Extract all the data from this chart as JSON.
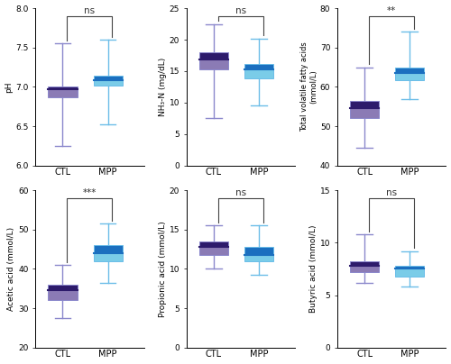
{
  "panels": [
    {
      "ylabel": "pH",
      "ylim": [
        6.0,
        8.0
      ],
      "yticks": [
        6.0,
        6.5,
        7.0,
        7.5,
        8.0
      ],
      "significance": "ns",
      "CTL": {
        "median": 6.975,
        "q1": 6.87,
        "q3": 7.0,
        "whislo": 6.25,
        "whishi": 7.55
      },
      "MPP": {
        "median": 7.08,
        "q1": 7.02,
        "q3": 7.14,
        "whislo": 6.52,
        "whishi": 7.6
      }
    },
    {
      "ylabel": "NH₃-N (mg/dL)",
      "ylim": [
        0,
        25
      ],
      "yticks": [
        0,
        5,
        10,
        15,
        20,
        25
      ],
      "significance": "ns",
      "CTL": {
        "median": 16.8,
        "q1": 15.3,
        "q3": 18.0,
        "whislo": 7.5,
        "whishi": 22.5
      },
      "MPP": {
        "median": 15.3,
        "q1": 13.8,
        "q3": 16.2,
        "whislo": 9.5,
        "whishi": 20.2
      }
    },
    {
      "ylabel": "Total volatile fatty acids\n(mmol/L)",
      "ylim": [
        40,
        80
      ],
      "yticks": [
        40,
        50,
        60,
        70,
        80
      ],
      "significance": "**",
      "CTL": {
        "median": 54.5,
        "q1": 52.0,
        "q3": 56.5,
        "whislo": 44.5,
        "whishi": 65.0
      },
      "MPP": {
        "median": 63.5,
        "q1": 61.8,
        "q3": 64.8,
        "whislo": 57.0,
        "whishi": 74.0
      }
    },
    {
      "ylabel": "Acetic acid (mmol/L)",
      "ylim": [
        20,
        60
      ],
      "yticks": [
        20,
        30,
        40,
        50,
        60
      ],
      "significance": "***",
      "CTL": {
        "median": 34.5,
        "q1": 32.0,
        "q3": 36.0,
        "whislo": 27.5,
        "whishi": 41.0
      },
      "MPP": {
        "median": 44.0,
        "q1": 42.0,
        "q3": 46.0,
        "whislo": 36.5,
        "whishi": 51.5
      }
    },
    {
      "ylabel": "Propionic acid (mmol/L)",
      "ylim": [
        0,
        20
      ],
      "yticks": [
        0,
        5,
        10,
        15,
        20
      ],
      "significance": "ns",
      "CTL": {
        "median": 12.8,
        "q1": 11.8,
        "q3": 13.5,
        "whislo": 10.0,
        "whishi": 15.5
      },
      "MPP": {
        "median": 11.8,
        "q1": 11.0,
        "q3": 12.8,
        "whislo": 9.2,
        "whishi": 15.5
      }
    },
    {
      "ylabel": "Butyric acid (mmol/L)",
      "ylim": [
        0,
        15
      ],
      "yticks": [
        0,
        5,
        10,
        15
      ],
      "significance": "ns",
      "CTL": {
        "median": 7.8,
        "q1": 7.2,
        "q3": 8.2,
        "whislo": 6.2,
        "whishi": 10.8
      },
      "MPP": {
        "median": 7.5,
        "q1": 6.8,
        "q3": 7.8,
        "whislo": 5.8,
        "whishi": 9.2
      }
    }
  ],
  "ctl_lower_color": "#8B7BB5",
  "ctl_upper_color": "#2D1B6B",
  "ctl_median_color": "#2D1B6B",
  "mpp_lower_color": "#7ACCE8",
  "mpp_upper_color": "#1B6FBF",
  "mpp_median_color": "#1B6FBF",
  "ctl_whisker_color": "#8B88CC",
  "mpp_whisker_color": "#6BBDE8",
  "background_color": "#ffffff"
}
